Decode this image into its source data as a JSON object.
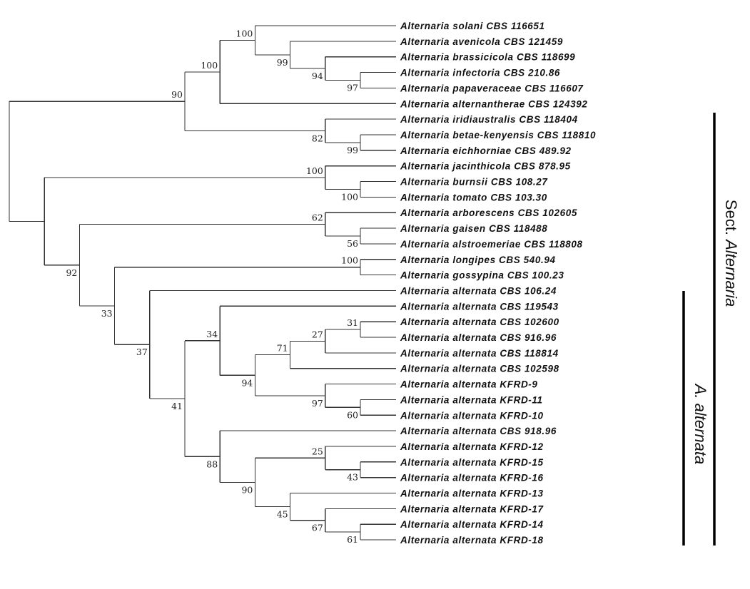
{
  "leaves": [
    "Alternaria solani CBS 116651",
    "Alternaria avenicola CBS 121459",
    "Alternaria brassicicola CBS 118699",
    "Alternaria infectoria CBS 210.86",
    "Alternaria papaveraceae CBS 116607",
    "Alternaria alternantherae CBS 124392",
    "Alternaria iridiaustralis CBS 118404",
    "Alternaria betae-kenyensis CBS 118810",
    "Alternaria eichhorniae CBS 489.92",
    "Alternaria jacinthicola CBS 878.95",
    "Alternaria burnsii CBS 108.27",
    "Alternaria tomato CBS 103.30",
    "Alternaria arborescens CBS 102605",
    "Alternaria gaisen CBS 118488",
    "Alternaria alstroemeriae CBS 118808",
    "Alternaria longipes CBS 540.94",
    "Alternaria gossypina CBS 100.23",
    "Alternaria alternata CBS 106.24",
    "Alternaria alternata CBS 119543",
    "Alternaria alternata CBS 102600",
    "Alternaria alternata CBS 916.96",
    "Alternaria alternata CBS 118814",
    "Alternaria alternata CBS 102598",
    "Alternaria alternata KFRD-9",
    "Alternaria alternata KFRD-11",
    "Alternaria alternata KFRD-10",
    "Alternaria alternata CBS 918.96",
    "Alternaria alternata KFRD-12",
    "Alternaria alternata KFRD-15",
    "Alternaria alternata KFRD-16",
    "Alternaria alternata KFRD-13",
    "Alternaria alternata KFRD-17",
    "Alternaria alternata KFRD-14",
    "Alternaria alternata KFRD-18"
  ],
  "tree": {
    "d": 0,
    "c": [
      {
        "d": 5,
        "s": "90",
        "c": [
          {
            "d": 6,
            "s": "100",
            "c": [
              {
                "d": 7,
                "s": "100",
                "c": [
                  0,
                  {
                    "d": 8,
                    "s": "99",
                    "c": [
                      1,
                      {
                        "d": 9,
                        "s": "94",
                        "c": [
                          2,
                          {
                            "d": 10,
                            "s": "97",
                            "c": [
                              3,
                              4
                            ]
                          }
                        ]
                      }
                    ]
                  }
                ]
              },
              5
            ]
          },
          {
            "d": 9,
            "s": "82",
            "c": [
              6,
              {
                "d": 10,
                "s": "99",
                "c": [
                  7,
                  8
                ]
              }
            ]
          }
        ]
      },
      {
        "d": 1,
        "c": [
          {
            "d": 9,
            "s": "100",
            "c": [
              9,
              {
                "d": 10,
                "s": "100",
                "c": [
                  10,
                  11
                ]
              }
            ]
          },
          {
            "d": 2,
            "s": "92",
            "c": [
              {
                "d": 9,
                "s": "62",
                "c": [
                  12,
                  {
                    "d": 10,
                    "s": "56",
                    "c": [
                      13,
                      14
                    ]
                  }
                ]
              },
              {
                "d": 3,
                "s": "33",
                "c": [
                  {
                    "d": 10,
                    "s": "100",
                    "c": [
                      15,
                      16
                    ]
                  },
                  {
                    "d": 4,
                    "s": "37",
                    "c": [
                      17,
                      {
                        "d": 5,
                        "s": "41",
                        "c": [
                          {
                            "d": 6,
                            "s": "34",
                            "c": [
                              18,
                              {
                                "d": 7,
                                "s": "94",
                                "c": [
                                  {
                                    "d": 8,
                                    "s": "71",
                                    "c": [
                                      {
                                        "d": 9,
                                        "s": "27",
                                        "c": [
                                          {
                                            "d": 10,
                                            "s": "31",
                                            "c": [
                                              19,
                                              20
                                            ]
                                          },
                                          21
                                        ]
                                      },
                                      22
                                    ]
                                  },
                                  {
                                    "d": 9,
                                    "s": "97",
                                    "c": [
                                      23,
                                      {
                                        "d": 10,
                                        "s": "60",
                                        "c": [
                                          24,
                                          25
                                        ]
                                      }
                                    ]
                                  }
                                ]
                              }
                            ]
                          },
                          {
                            "d": 6,
                            "s": "88",
                            "c": [
                              26,
                              {
                                "d": 7,
                                "s": "90",
                                "c": [
                                  {
                                    "d": 9,
                                    "s": "25",
                                    "c": [
                                      27,
                                      {
                                        "d": 10,
                                        "s": "43",
                                        "c": [
                                          28,
                                          29
                                        ]
                                      }
                                    ]
                                  },
                                  {
                                    "d": 8,
                                    "s": "45",
                                    "c": [
                                      30,
                                      {
                                        "d": 9,
                                        "s": "67",
                                        "c": [
                                          31,
                                          {
                                            "d": 10,
                                            "s": "61",
                                            "c": [
                                              32,
                                              33
                                            ]
                                          }
                                        ]
                                      }
                                    ]
                                  }
                                ]
                              }
                            ]
                          }
                        ]
                      }
                    ]
                  }
                ]
              }
            ]
          }
        ]
      }
    ]
  },
  "clades": {
    "sect_prefix": "Sect.",
    "sect_name": "Alternaria",
    "species": "A. alternata"
  }
}
